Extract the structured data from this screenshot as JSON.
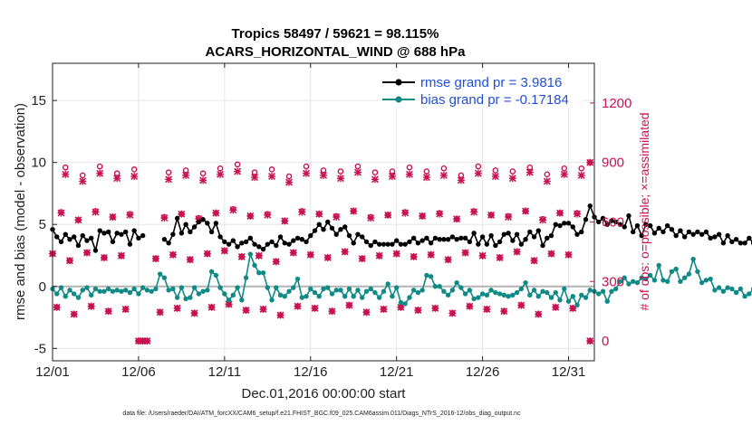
{
  "chart_data": {
    "type": "line",
    "title": "Tropics 58497 / 59621 = 98.115%",
    "subtitle": "ACARS_HORIZONTAL_WIND @ 688 hPa",
    "xlabel": "Dec.01,2016 00:00:00 start",
    "ylabel": "rmse and bias (model - observation)",
    "ylabel_right": "# of obs: o=possible; ×=assimilated",
    "footer": "data file: /Users/raeder/DAI/ATM_forcXX/CAM6_setup/f.e21.FHIST_BGC.f09_025.CAM6assim.011/Diags_NTrS_2016-12/obs_diag_output.nc",
    "xlim": [
      0,
      31.5
    ],
    "ylim": [
      -6,
      18
    ],
    "ylim_right": [
      -100,
      1400
    ],
    "xticks": [
      0,
      5,
      10,
      15,
      20,
      25,
      30
    ],
    "xtick_labels": [
      "12/01",
      "12/06",
      "12/11",
      "12/16",
      "12/21",
      "12/26",
      "12/31"
    ],
    "yticks": [
      -5,
      0,
      5,
      10,
      15
    ],
    "yticks_right": [
      0,
      300,
      600,
      900,
      1200
    ],
    "reference_line": 0,
    "step_days": 0.25,
    "rmse_gap_index_range": [
      22,
      25
    ],
    "series": [
      {
        "name": "rmse grand pr = 3.9816",
        "color": "#000000",
        "axis": "left",
        "values": [
          4.6,
          4.0,
          3.6,
          4.2,
          3.8,
          4.0,
          3.3,
          4.1,
          3.7,
          3.9,
          2.9,
          4.5,
          4.3,
          4.4,
          3.6,
          4.3,
          4.2,
          4.4,
          3.4,
          4.5,
          3.9,
          4.1,
          4.4,
          4.4,
          4.1,
          4.0,
          3.8,
          3.5,
          4.2,
          5.5,
          4.3,
          5.0,
          4.4,
          4.8,
          5.2,
          5.4,
          5.1,
          4.4,
          5.1,
          4.0,
          3.6,
          3.4,
          3.7,
          3.2,
          3.5,
          3.6,
          3.9,
          3.4,
          3.2,
          3.0,
          3.4,
          3.6,
          3.3,
          4.0,
          3.5,
          3.4,
          3.7,
          3.9,
          3.8,
          3.6,
          4.1,
          4.5,
          5.0,
          4.6,
          5.2,
          4.7,
          4.2,
          4.6,
          4.8,
          4.1,
          3.5,
          4.2,
          4.0,
          3.6,
          3.3,
          3.6,
          3.4,
          3.4,
          3.4,
          3.4,
          3.7,
          3.4,
          3.4,
          3.6,
          3.9,
          3.5,
          3.7,
          3.9,
          3.5,
          3.9,
          3.8,
          3.8,
          3.8,
          4.0,
          3.8,
          3.9,
          3.9,
          3.6,
          4.3,
          3.4,
          4.0,
          3.4,
          4.1,
          3.3,
          3.6,
          4.2,
          4.3,
          3.7,
          4.2,
          3.4,
          3.8,
          4.4,
          4.0,
          4.5,
          3.3,
          3.9,
          4.1,
          5.0,
          4.9,
          5.1,
          5.1,
          4.8,
          4.2,
          4.4,
          5.4,
          6.5,
          5.6,
          5.2,
          5.5,
          5.0,
          5.3,
          5.2,
          5.0,
          4.8,
          5.7,
          4.4,
          4.9,
          4.1,
          5.0,
          4.9,
          4.3,
          4.7,
          4.4,
          4.9,
          4.6,
          4.1,
          4.5,
          4.0,
          4.4,
          4.2,
          4.4,
          4.2,
          4.4,
          3.9,
          4.0,
          4.2,
          3.5,
          4.1,
          3.6,
          3.8,
          3.5,
          3.5,
          3.9,
          3.5,
          3.8,
          3.2,
          3.5,
          3.5,
          3.4,
          3.1,
          3.4,
          3.3,
          3.5,
          3.2,
          3.6,
          2.9,
          3.6,
          3.0,
          3.0,
          3.4,
          3.6,
          3.4,
          2.9,
          3.6,
          4.2,
          3.8,
          4.3,
          4.3,
          4.1,
          3.8,
          3.9,
          4.4,
          4.0,
          3.7,
          4.4,
          3.9,
          3.5,
          3.5,
          3.8,
          4.4,
          3.7,
          3.6,
          4.2,
          3.8,
          4.1,
          4.6,
          3.8,
          4.7,
          4.2,
          4.3,
          4.2,
          4.5,
          4.1,
          4.8,
          4.6,
          4.8,
          4.7,
          4.8,
          4.4,
          4.3,
          4.1,
          4.3,
          3.9,
          3.7,
          3.4,
          4.0,
          3.6,
          3.8,
          3.5,
          3.7,
          3.6
        ]
      },
      {
        "name": "bias grand pr = -0.17184",
        "color": "#0f8a86",
        "axis": "left",
        "values": [
          -0.2,
          -0.6,
          -0.1,
          -0.8,
          -0.3,
          -0.6,
          -0.9,
          -0.3,
          -0.1,
          -0.7,
          -0.2,
          -0.4,
          -0.4,
          -0.2,
          -0.4,
          -0.3,
          -0.4,
          -0.3,
          -0.5,
          -0.2,
          -0.6,
          -0.1,
          -0.3,
          -0.4,
          -0.2,
          1.0,
          0.7,
          -0.3,
          -0.2,
          -0.9,
          -0.1,
          -1.0,
          -0.9,
          -0.1,
          -0.6,
          -0.4,
          -0.3,
          1.2,
          0.9,
          -0.1,
          -0.6,
          -1.1,
          -0.7,
          -0.1,
          -1.1,
          0.7,
          2.6,
          1.7,
          1.1,
          1.1,
          -0.1,
          -1.1,
          -0.1,
          -0.7,
          -0.8,
          -0.4,
          -0.1,
          0.6,
          -0.9,
          -0.8,
          -0.2,
          -0.5,
          -0.8,
          -0.2,
          -0.1,
          -0.6,
          -0.3,
          -0.3,
          -0.8,
          -0.2,
          -0.8,
          -0.3,
          -0.9,
          -0.4,
          -0.2,
          -0.5,
          -0.9,
          -0.4,
          0.2,
          -0.8,
          -0.1,
          -1.3,
          -1.4,
          -0.9,
          -0.3,
          -0.5,
          -0.3,
          0.9,
          0.8,
          0.0,
          0.0,
          -0.4,
          -0.7,
          -0.3,
          0.3,
          -0.1,
          -0.6,
          -0.3,
          -1.0,
          -0.9,
          -0.6,
          -0.7,
          -0.3,
          -0.5,
          -0.6,
          -0.7,
          -0.8,
          -0.7,
          -0.5,
          -0.2,
          0.3,
          -0.7,
          -0.3,
          -0.8,
          -0.4,
          -0.5,
          -0.9,
          -0.5,
          -1.1,
          -0.2,
          -1.2,
          -0.8,
          -1.5,
          -0.7,
          -0.9,
          -0.3,
          -0.4,
          -0.6,
          -0.4,
          -1.2,
          -0.4,
          -0.2,
          0.4,
          0.7,
          0.2,
          0.4,
          0.3,
          0.7,
          0.6,
          0.9,
          0.5,
          1.7,
          0.5,
          0.4,
          1.2,
          1.4,
          0.4,
          0.7,
          1.0,
          2.2,
          1.2,
          0.3,
          0.5,
          0.6,
          -0.3,
          -0.1,
          -0.4,
          -0.1,
          -0.2,
          -0.5,
          -0.2,
          -0.8,
          -0.6,
          -0.2,
          -0.4,
          -0.6,
          -0.7,
          -0.5,
          -0.5,
          -0.6,
          -0.3,
          -0.7,
          -0.2,
          -0.4,
          -0.2,
          -0.5,
          -0.6,
          -0.1,
          -0.5,
          -0.2,
          -0.6,
          -0.3,
          -0.4,
          -0.2,
          -0.4,
          -0.4,
          -0.4,
          -1.0,
          0.6,
          0.2,
          -0.2,
          -0.3,
          -0.5,
          -0.5,
          -0.3,
          -0.3,
          -0.2,
          -0.7,
          -0.3,
          -0.5,
          -0.3,
          0.1,
          -0.1,
          -0.2,
          0.4,
          0.2,
          0.5,
          0.0,
          0.5,
          0.0,
          -0.8,
          0.2,
          -0.4,
          0.1,
          0.7,
          0.1,
          0.4,
          0.4,
          -0.1,
          -0.4,
          -0.2,
          -0.5,
          -0.5,
          -0.5,
          -0.3,
          0.1,
          0.5,
          0.2,
          -0.3,
          -0.4,
          -0.4,
          0.4,
          -0.6,
          -0.2,
          -0.1,
          0.1,
          0.3,
          0.7
        ]
      }
    ],
    "obs_counts": {
      "axis": "right",
      "color": "#c8124f",
      "cycle_template": [
        430,
        160,
        635,
        830
      ],
      "cycle_jitter": [
        10,
        -25,
        15,
        -10,
        0,
        20,
        -15,
        5,
        -20,
        10,
        25,
        -5,
        0,
        -30,
        15,
        5,
        -10,
        20,
        -15,
        0,
        10,
        -5,
        5,
        -20,
        15,
        0,
        -10,
        20,
        -25,
        10,
        5
      ],
      "possible_extra": [
        0,
        0,
        5,
        35,
        0,
        0,
        0,
        30,
        0,
        0,
        5,
        35,
        0,
        0,
        0,
        25
      ],
      "special_points": [
        {
          "day": 5.0,
          "value": 0,
          "dx": [
            0.0,
            0.25,
            0.5
          ]
        },
        {
          "day": 31.25,
          "value": 0
        },
        {
          "day": 31.25,
          "value": 900
        }
      ]
    }
  },
  "legend": {
    "rmse_label": "rmse grand pr = 3.9816",
    "bias_label": "bias grand pr = -0.17184"
  }
}
